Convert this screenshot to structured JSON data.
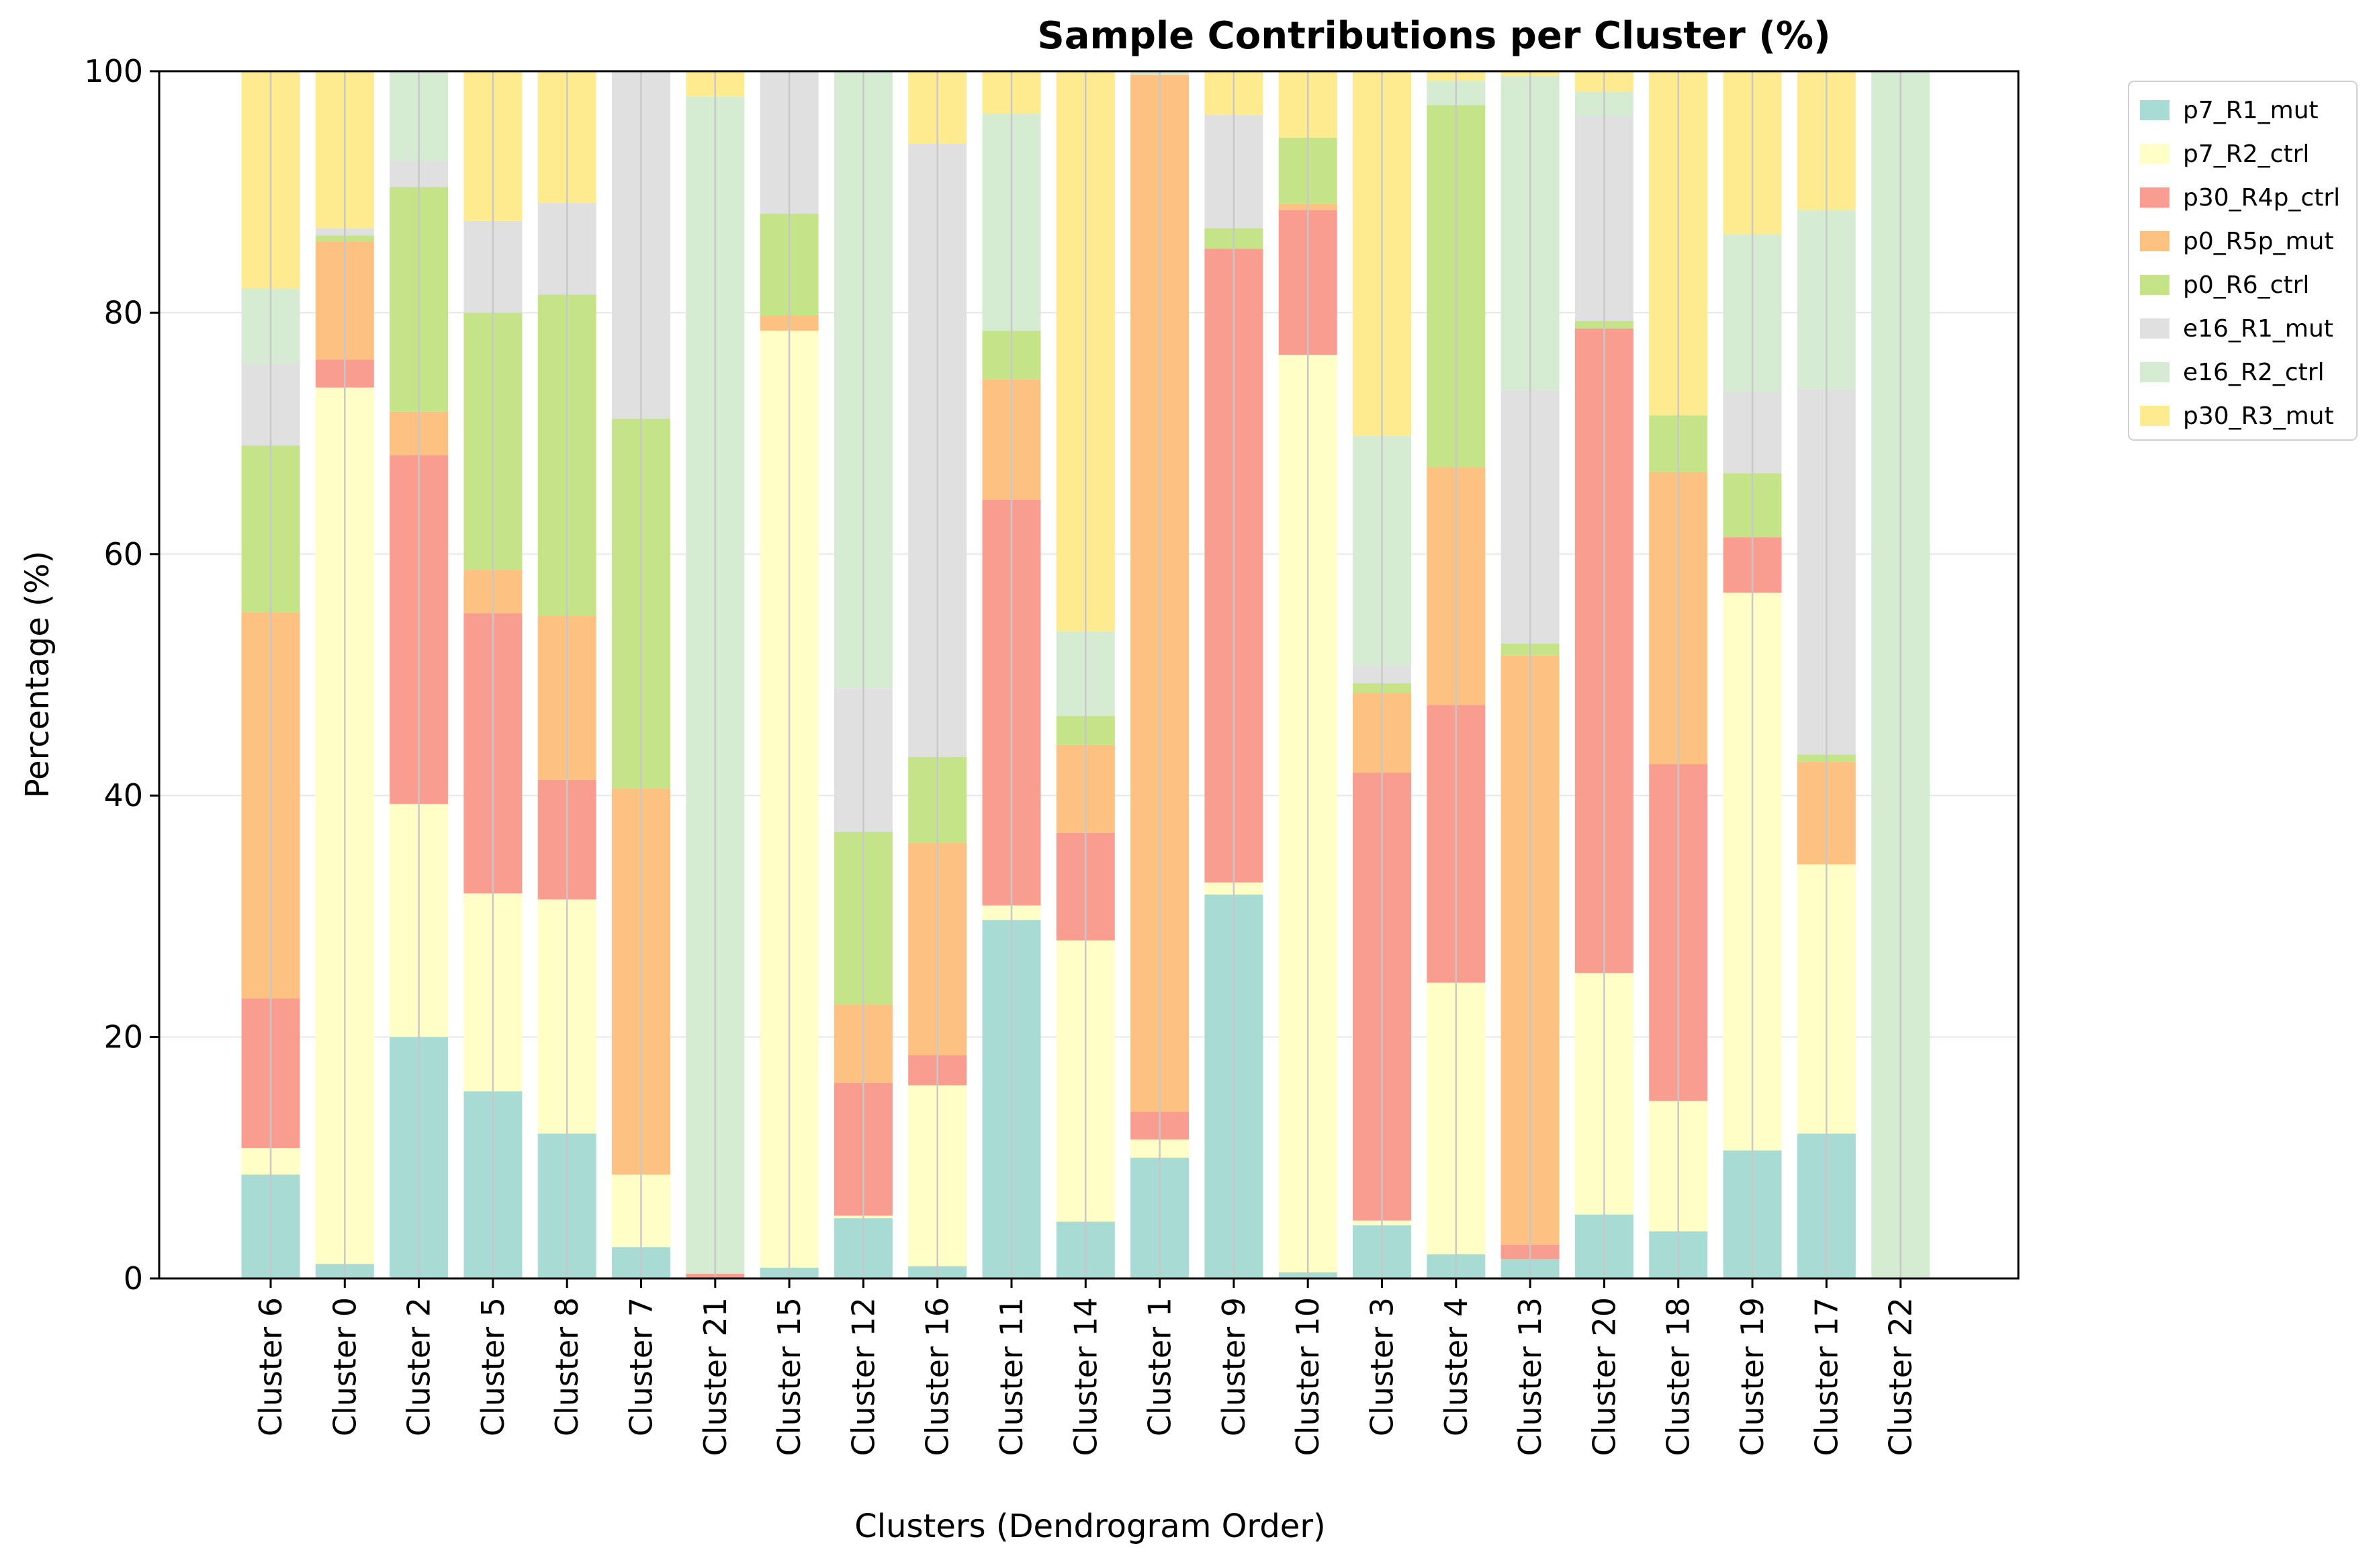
{
  "chart_data": {
    "type": "bar",
    "stacked": true,
    "title": "Sample Contributions per Cluster (%)",
    "xlabel": "Clusters (Dendrogram Order)",
    "ylabel": "Percentage (%)",
    "ylim": [
      0,
      100
    ],
    "yticks": [
      0,
      20,
      40,
      60,
      80,
      100
    ],
    "grid": true,
    "legend_position": "outside top-right",
    "categories": [
      "Cluster 6",
      "Cluster 0",
      "Cluster 2",
      "Cluster 5",
      "Cluster 8",
      "Cluster 7",
      "Cluster 21",
      "Cluster 15",
      "Cluster 12",
      "Cluster 16",
      "Cluster 11",
      "Cluster 14",
      "Cluster 1",
      "Cluster 9",
      "Cluster 10",
      "Cluster 3",
      "Cluster 4",
      "Cluster 13",
      "Cluster 20",
      "Cluster 18",
      "Cluster 19",
      "Cluster 17",
      "Cluster 22"
    ],
    "series": [
      {
        "name": "p7_R1_mut",
        "color": "#a8dbd3",
        "values": [
          8.6,
          1.2,
          20.0,
          15.5,
          12.0,
          2.6,
          0.0,
          0.9,
          5.0,
          1.0,
          29.7,
          4.7,
          10.0,
          31.8,
          0.5,
          4.4,
          2.0,
          1.6,
          5.3,
          3.9,
          10.6,
          12.0,
          0.0
        ]
      },
      {
        "name": "p7_R2_ctrl",
        "color": "#fefec6",
        "values": [
          2.2,
          72.6,
          19.3,
          16.4,
          19.4,
          6.0,
          0.0,
          77.6,
          0.2,
          15.0,
          1.2,
          23.3,
          1.5,
          1.0,
          76.0,
          0.4,
          22.5,
          0.0,
          20.0,
          10.8,
          46.2,
          22.3,
          0.0
        ]
      },
      {
        "name": "p30_R4p_ctrl",
        "color": "#f99d91",
        "values": [
          12.4,
          2.3,
          28.9,
          23.2,
          9.9,
          0.0,
          0.4,
          0.0,
          11.0,
          2.5,
          33.6,
          8.9,
          2.3,
          52.5,
          12.0,
          37.1,
          23.0,
          1.2,
          53.4,
          27.9,
          4.6,
          0.0,
          0.0
        ]
      },
      {
        "name": "p0_R5p_mut",
        "color": "#fdc282",
        "values": [
          32.0,
          9.8,
          3.6,
          3.6,
          13.6,
          32.0,
          0.0,
          1.3,
          6.5,
          17.6,
          10.0,
          7.3,
          85.9,
          0.0,
          0.5,
          6.6,
          19.7,
          48.8,
          0.0,
          24.2,
          0.0,
          8.5,
          0.0
        ]
      },
      {
        "name": "p0_R6_ctrl",
        "color": "#c5e487",
        "values": [
          13.8,
          0.5,
          18.6,
          21.3,
          26.6,
          30.6,
          0.0,
          8.4,
          14.3,
          7.1,
          4.0,
          2.4,
          0.0,
          1.7,
          5.5,
          0.8,
          30.0,
          1.0,
          0.6,
          4.7,
          5.3,
          0.6,
          0.0
        ]
      },
      {
        "name": "e16_R1_mut",
        "color": "#e0e0e0",
        "values": [
          6.8,
          0.6,
          2.2,
          7.6,
          7.6,
          28.8,
          0.0,
          11.8,
          11.9,
          50.8,
          0.0,
          0.0,
          0.0,
          9.4,
          0.0,
          1.5,
          0.0,
          21.0,
          17.0,
          0.0,
          6.7,
          30.3,
          0.0
        ]
      },
      {
        "name": "e16_R2_ctrl",
        "color": "#d5ecd2",
        "values": [
          6.2,
          0.0,
          7.4,
          0.0,
          0.0,
          0.0,
          97.5,
          0.0,
          51.1,
          0.0,
          18.0,
          7.0,
          0.3,
          0.0,
          0.0,
          19.0,
          2.0,
          26.0,
          2.0,
          0.0,
          13.1,
          14.8,
          100.0
        ]
      },
      {
        "name": "p30_R3_mut",
        "color": "#feeb8f",
        "values": [
          18.0,
          13.0,
          0.0,
          12.4,
          10.9,
          0.0,
          2.1,
          0.0,
          0.0,
          6.0,
          3.5,
          46.4,
          0.0,
          3.6,
          5.5,
          30.2,
          0.8,
          0.4,
          1.7,
          28.5,
          13.5,
          11.5,
          0.0
        ]
      }
    ]
  }
}
